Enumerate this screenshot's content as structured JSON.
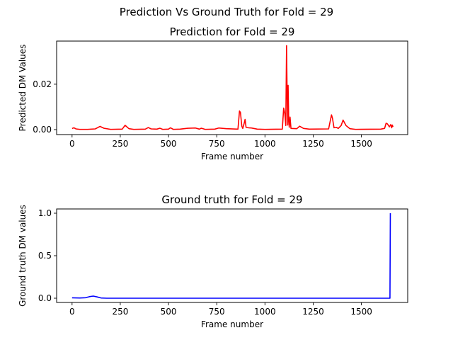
{
  "suptitle": "Prediction Vs Ground Truth for Fold = 29",
  "chart_data": [
    {
      "type": "line",
      "title": "Prediction for Fold = 29",
      "xlabel": "Frame number",
      "ylabel": "Predicted DM Values",
      "xlim": [
        -80,
        1740
      ],
      "ylim": [
        -0.0022,
        0.039
      ],
      "xticks": [
        0,
        250,
        500,
        750,
        1000,
        1250,
        1500
      ],
      "yticks": [
        0.0,
        0.02
      ],
      "ytick_labels": [
        "0.00",
        "0.02"
      ],
      "grid": false,
      "series": [
        {
          "color": "#ff0000",
          "points": [
            [
              0,
              0.0005
            ],
            [
              10,
              0.0008
            ],
            [
              20,
              0.0003
            ],
            [
              40,
              0.0001
            ],
            [
              80,
              0.0001
            ],
            [
              120,
              0.0003
            ],
            [
              145,
              0.0014
            ],
            [
              165,
              0.0006
            ],
            [
              200,
              0.0001
            ],
            [
              260,
              0.0002
            ],
            [
              275,
              0.0019
            ],
            [
              295,
              0.0004
            ],
            [
              320,
              0.0001
            ],
            [
              380,
              0.0002
            ],
            [
              395,
              0.0009
            ],
            [
              410,
              0.0003
            ],
            [
              440,
              0.0002
            ],
            [
              455,
              0.0006
            ],
            [
              470,
              0.0001
            ],
            [
              500,
              0.0002
            ],
            [
              510,
              0.0008
            ],
            [
              525,
              0.0001
            ],
            [
              560,
              0.0002
            ],
            [
              600,
              0.0006
            ],
            [
              640,
              0.0007
            ],
            [
              660,
              0.0002
            ],
            [
              670,
              0.0006
            ],
            [
              690,
              0.0001
            ],
            [
              740,
              0.0002
            ],
            [
              760,
              0.0007
            ],
            [
              800,
              0.0004
            ],
            [
              860,
              0.0002
            ],
            [
              868,
              0.0082
            ],
            [
              873,
              0.0075
            ],
            [
              880,
              0.0015
            ],
            [
              885,
              0.0005
            ],
            [
              893,
              0.003
            ],
            [
              897,
              0.0045
            ],
            [
              902,
              0.001
            ],
            [
              915,
              0.0008
            ],
            [
              930,
              0.0007
            ],
            [
              960,
              0.0002
            ],
            [
              1000,
              0.0001
            ],
            [
              1090,
              0.0002
            ],
            [
              1097,
              0.0095
            ],
            [
              1103,
              0.007
            ],
            [
              1108,
              0.0018
            ],
            [
              1112,
              0.037
            ],
            [
              1115,
              0.015
            ],
            [
              1118,
              0.002
            ],
            [
              1120,
              0.0195
            ],
            [
              1123,
              0.005
            ],
            [
              1126,
              0.001
            ],
            [
              1130,
              0.0055
            ],
            [
              1135,
              0.0005
            ],
            [
              1165,
              0.0004
            ],
            [
              1180,
              0.0015
            ],
            [
              1200,
              0.0005
            ],
            [
              1230,
              0.0002
            ],
            [
              1330,
              0.0003
            ],
            [
              1345,
              0.0065
            ],
            [
              1350,
              0.005
            ],
            [
              1358,
              0.0008
            ],
            [
              1370,
              0.001
            ],
            [
              1380,
              0.0005
            ],
            [
              1395,
              0.0018
            ],
            [
              1405,
              0.0042
            ],
            [
              1420,
              0.0018
            ],
            [
              1440,
              0.0004
            ],
            [
              1470,
              0.0001
            ],
            [
              1600,
              0.0002
            ],
            [
              1620,
              0.0005
            ],
            [
              1628,
              0.0028
            ],
            [
              1635,
              0.0025
            ],
            [
              1645,
              0.0012
            ],
            [
              1652,
              0.0022
            ],
            [
              1657,
              0.0008
            ],
            [
              1660,
              0.002
            ],
            [
              1664,
              0.0012
            ]
          ]
        }
      ]
    },
    {
      "type": "line",
      "title": "Ground truth for Fold = 29",
      "xlabel": "Frame number",
      "ylabel": "Ground truth DM values",
      "xlim": [
        -80,
        1740
      ],
      "ylim": [
        -0.05,
        1.05
      ],
      "xticks": [
        0,
        250,
        500,
        750,
        1000,
        1250,
        1500
      ],
      "yticks": [
        0.0,
        0.5,
        1.0
      ],
      "ytick_labels": [
        "0.0",
        "0.5",
        "1.0"
      ],
      "grid": false,
      "series": [
        {
          "color": "#0000ff",
          "points": [
            [
              0,
              0.005
            ],
            [
              40,
              0.003
            ],
            [
              70,
              0.006
            ],
            [
              90,
              0.018
            ],
            [
              110,
              0.025
            ],
            [
              130,
              0.015
            ],
            [
              150,
              0.003
            ],
            [
              180,
              0.0
            ],
            [
              400,
              0.0
            ],
            [
              800,
              0.0
            ],
            [
              1200,
              0.0
            ],
            [
              1640,
              0.0
            ],
            [
              1648,
              0.0
            ],
            [
              1650,
              1.0
            ]
          ]
        }
      ]
    }
  ]
}
